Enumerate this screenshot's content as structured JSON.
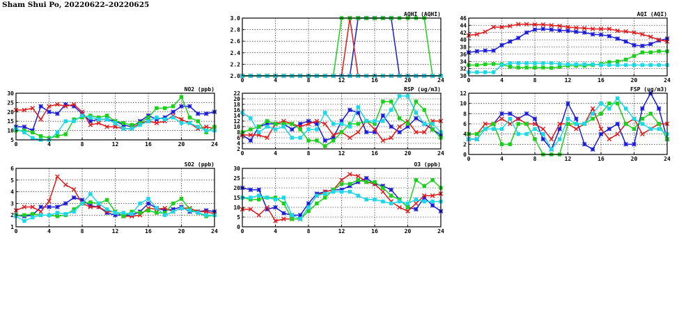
{
  "title": "Sham Shui Po, 20220622–20220625",
  "series_colors": [
    "#1a1adb",
    "#e01a1a",
    "#1ad01a",
    "#1ad8e8"
  ],
  "chart_data": [
    {
      "type": "line",
      "title": "NO2 (ppb)",
      "xlim": [
        0,
        24
      ],
      "ylim": [
        5,
        30
      ],
      "xticks": [
        0,
        4,
        8,
        12,
        16,
        20,
        24
      ],
      "yticks": [
        5,
        10,
        15,
        20,
        25,
        30
      ],
      "grid": true,
      "series": [
        {
          "values": [
            12,
            12,
            10,
            23,
            20,
            19,
            24,
            23,
            19,
            15,
            16,
            16,
            15,
            13,
            12,
            15,
            18,
            16,
            17,
            20,
            23,
            23,
            19,
            19,
            20
          ]
        },
        {
          "values": [
            21,
            21,
            22,
            16,
            23,
            24,
            23,
            24,
            20,
            13,
            14,
            12,
            12,
            11,
            11,
            14,
            15,
            14,
            15,
            18,
            16,
            14,
            11,
            12,
            11
          ]
        },
        {
          "values": [
            10,
            10,
            9,
            7,
            6,
            7,
            8,
            16,
            17,
            18,
            17,
            18,
            15,
            14,
            13,
            14,
            17,
            22,
            22,
            23,
            28,
            17,
            15,
            9,
            12
          ]
        },
        {
          "values": [
            11,
            9,
            6,
            5,
            5,
            9,
            15,
            15,
            18,
            17,
            16,
            16,
            14,
            11,
            11,
            13,
            15,
            17,
            16,
            17,
            14,
            14,
            12,
            10,
            10
          ]
        }
      ]
    },
    {
      "type": "line",
      "title": "SO2 (ppb)",
      "xlim": [
        0,
        24
      ],
      "ylim": [
        1,
        6
      ],
      "xticks": [
        0,
        4,
        8,
        12,
        16,
        20,
        24
      ],
      "yticks": [
        1,
        2,
        3,
        4,
        5,
        6
      ],
      "grid": true,
      "series": [
        {
          "values": [
            2,
            1.9,
            2,
            2.7,
            2.7,
            2.7,
            3,
            3.5,
            3.3,
            2.8,
            2.7,
            2.2,
            2,
            2,
            2,
            2.3,
            3,
            2.6,
            2.4,
            2.5,
            2.7,
            2.3,
            2.3,
            2.4,
            2.3
          ]
        },
        {
          "values": [
            2.4,
            2.7,
            2.7,
            2.3,
            3.2,
            5.3,
            4.6,
            4.2,
            3,
            2.7,
            2.7,
            2.3,
            2.3,
            1.9,
            1.9,
            2,
            2.6,
            2.5,
            2.6,
            2.3,
            2.6,
            2.6,
            2.3,
            2.3,
            2.1
          ]
        },
        {
          "values": [
            2,
            2,
            2.1,
            2,
            2,
            1.9,
            2,
            2.5,
            3,
            3.1,
            3,
            3.3,
            2.3,
            1.9,
            2.3,
            2.2,
            2.4,
            2.2,
            2.2,
            3,
            3.4,
            2.5,
            2.2,
            1.9,
            2
          ]
        },
        {
          "values": [
            1.9,
            1.5,
            1.8,
            2,
            2,
            2.2,
            2.1,
            2.3,
            3,
            3.8,
            3,
            2.5,
            2.2,
            2.2,
            2.1,
            3,
            3.4,
            2.6,
            2,
            2.3,
            2.6,
            2.4,
            2.2,
            2,
            2
          ]
        }
      ]
    },
    {
      "type": "line",
      "title": "AQHI (AQHI)",
      "xlim": [
        0,
        24
      ],
      "ylim": [
        2.0,
        3.0
      ],
      "xticks": [
        0,
        4,
        8,
        12,
        16,
        20,
        24
      ],
      "yticks": [
        2.0,
        2.2,
        2.4,
        2.6,
        2.8,
        3.0
      ],
      "ytick_labels": [
        "2.0",
        "2.2",
        "2.4",
        "2.6",
        "2.8",
        "3.0"
      ],
      "grid": true,
      "series": [
        {
          "values": [
            2,
            2,
            2,
            2,
            2,
            2,
            2,
            2,
            2,
            2,
            2,
            2,
            2,
            2,
            3,
            3,
            3,
            3,
            3,
            2,
            2,
            2,
            2,
            2,
            2
          ]
        },
        {
          "values": [
            2,
            2,
            2,
            2,
            2,
            2,
            2,
            2,
            2,
            2,
            2,
            2,
            2,
            3,
            2,
            2,
            2,
            2,
            2,
            2,
            2,
            2,
            2,
            2,
            2
          ]
        },
        {
          "values": [
            2,
            2,
            2,
            2,
            2,
            2,
            2,
            2,
            2,
            2,
            2,
            2,
            3,
            3,
            3,
            3,
            3,
            3,
            3,
            3,
            3,
            3,
            3,
            2,
            2
          ]
        },
        {
          "values": [
            2,
            2,
            2,
            2,
            2,
            2,
            2,
            2,
            2,
            2,
            2,
            2,
            2,
            2,
            2,
            2,
            2,
            2,
            2,
            2,
            2,
            2,
            2,
            2,
            2
          ]
        }
      ]
    },
    {
      "type": "line",
      "title": "RSP (ug/m3)",
      "xlim": [
        0,
        24
      ],
      "ylim": [
        2,
        22
      ],
      "xticks": [
        0,
        4,
        8,
        12,
        16,
        20,
        24
      ],
      "yticks": [
        2,
        4,
        6,
        8,
        10,
        12,
        14,
        16,
        18,
        20,
        22
      ],
      "grid": true,
      "series": [
        {
          "values": [
            7,
            5,
            10,
            11,
            11,
            11,
            9,
            11,
            12,
            11,
            5,
            6,
            12,
            16,
            15,
            8,
            8,
            14,
            10,
            8,
            10,
            13,
            11,
            9,
            7
          ]
        },
        {
          "values": [
            7,
            7,
            7,
            6,
            11,
            12,
            11,
            10,
            11,
            12,
            11,
            7,
            8,
            6,
            8,
            12,
            9,
            5,
            6,
            10,
            12,
            8,
            8,
            12,
            12
          ]
        },
        {
          "values": [
            8,
            9,
            10,
            12,
            11,
            11,
            11,
            9,
            5,
            5,
            3,
            5,
            8,
            11,
            11,
            12,
            11,
            19,
            19,
            13,
            11,
            19,
            16,
            9,
            6
          ]
        },
        {
          "values": [
            15,
            13,
            8,
            10,
            9,
            10,
            6,
            6,
            9,
            9,
            15,
            11,
            11,
            10,
            17,
            12,
            12,
            12,
            16,
            21,
            21,
            15,
            11,
            11,
            8
          ]
        }
      ]
    },
    {
      "type": "line",
      "title": "O3 (ppb)",
      "xlim": [
        0,
        24
      ],
      "ylim": [
        0,
        30
      ],
      "xticks": [
        0,
        4,
        8,
        12,
        16,
        20,
        24
      ],
      "yticks": [
        0,
        5,
        10,
        15,
        20,
        25,
        30
      ],
      "grid": true,
      "series": [
        {
          "values": [
            20,
            19,
            19,
            9,
            10,
            7,
            6,
            6,
            12,
            17,
            18,
            19,
            19,
            21,
            23,
            25,
            22,
            21,
            19,
            14,
            10,
            9,
            15,
            11,
            8
          ]
        },
        {
          "values": [
            9,
            9,
            6,
            10,
            3,
            4,
            4,
            4,
            10,
            16,
            18,
            19,
            24,
            27,
            26,
            23,
            22,
            18,
            13,
            10,
            8,
            12,
            16,
            16,
            17
          ]
        },
        {
          "values": [
            15,
            14,
            14,
            15,
            15,
            12,
            4,
            4,
            8,
            12,
            15,
            19,
            22,
            22,
            24,
            23,
            23,
            20,
            16,
            14,
            10,
            24,
            21,
            24,
            20
          ]
        },
        {
          "values": [
            15,
            15,
            16,
            15,
            14,
            15,
            6,
            4,
            10,
            16,
            17,
            18,
            18,
            18,
            16,
            14,
            14,
            13,
            12,
            13,
            12,
            14,
            13,
            13,
            13
          ]
        }
      ]
    },
    {
      "type": "line",
      "title": "AQI (AQI)",
      "xlim": [
        0,
        24
      ],
      "ylim": [
        30,
        46
      ],
      "xticks": [
        0,
        4,
        8,
        12,
        16,
        20,
        24
      ],
      "yticks": [
        30,
        32,
        34,
        36,
        38,
        40,
        42,
        44,
        46
      ],
      "grid": true,
      "series": [
        {
          "values": [
            36.5,
            36.8,
            37,
            37,
            38.5,
            39.5,
            40.5,
            42,
            42.8,
            43,
            42.8,
            42.6,
            42.5,
            42.2,
            42,
            41.5,
            41.4,
            41,
            40.3,
            39.5,
            38.5,
            38.3,
            38.8,
            39.8,
            40.3
          ]
        },
        {
          "values": [
            41.2,
            41.5,
            42.2,
            43.5,
            43.5,
            43.8,
            44.3,
            44.3,
            44.2,
            44.2,
            44,
            43.8,
            43.5,
            43.3,
            43.2,
            43,
            43,
            43,
            42.5,
            42.3,
            42,
            41.5,
            40.8,
            40,
            39.5
          ]
        },
        {
          "values": [
            33,
            33,
            33.2,
            33.3,
            33.2,
            32.5,
            32.3,
            32.3,
            32.3,
            32.3,
            32.2,
            32.5,
            32.8,
            32.8,
            32.8,
            33,
            33.3,
            33.8,
            34,
            34.5,
            35.5,
            36.5,
            36.5,
            36.8,
            36.8
          ]
        },
        {
          "values": [
            31,
            31,
            31,
            31,
            33,
            33.5,
            33.5,
            33.5,
            33.5,
            33.5,
            33.5,
            33.3,
            33.2,
            33.2,
            33.2,
            33.2,
            33,
            33,
            33,
            33,
            33,
            33,
            33,
            33,
            33
          ]
        }
      ]
    },
    {
      "type": "line",
      "title": "FSP (ug/m3)",
      "xlim": [
        0,
        24
      ],
      "ylim": [
        0,
        12
      ],
      "xticks": [
        0,
        4,
        8,
        12,
        16,
        20,
        24
      ],
      "yticks": [
        0,
        2,
        4,
        6,
        8,
        10,
        12
      ],
      "grid": true,
      "series": [
        {
          "values": [
            3,
            3,
            5,
            6,
            8,
            8,
            7,
            8,
            7,
            3,
            1,
            5,
            10,
            7,
            2,
            1,
            4,
            5,
            6,
            2,
            2,
            9,
            12,
            9,
            3
          ]
        },
        {
          "values": [
            4,
            4,
            6,
            6,
            7,
            6,
            7,
            6,
            6,
            5,
            3,
            6,
            6,
            5,
            6,
            9,
            5,
            3,
            4,
            6,
            7,
            4,
            5,
            6,
            6
          ]
        },
        {
          "values": [
            4,
            4,
            5,
            6,
            2,
            2,
            6,
            6,
            3,
            0,
            0,
            0,
            6,
            6,
            6,
            7,
            8,
            10,
            10,
            6,
            5,
            7,
            8,
            6,
            3
          ]
        },
        {
          "values": [
            3,
            3,
            5,
            5,
            5,
            7,
            4,
            4,
            5,
            4,
            1,
            3,
            7,
            6,
            6,
            8,
            10,
            9,
            11,
            9,
            7,
            6,
            5,
            5,
            4
          ]
        }
      ]
    }
  ]
}
